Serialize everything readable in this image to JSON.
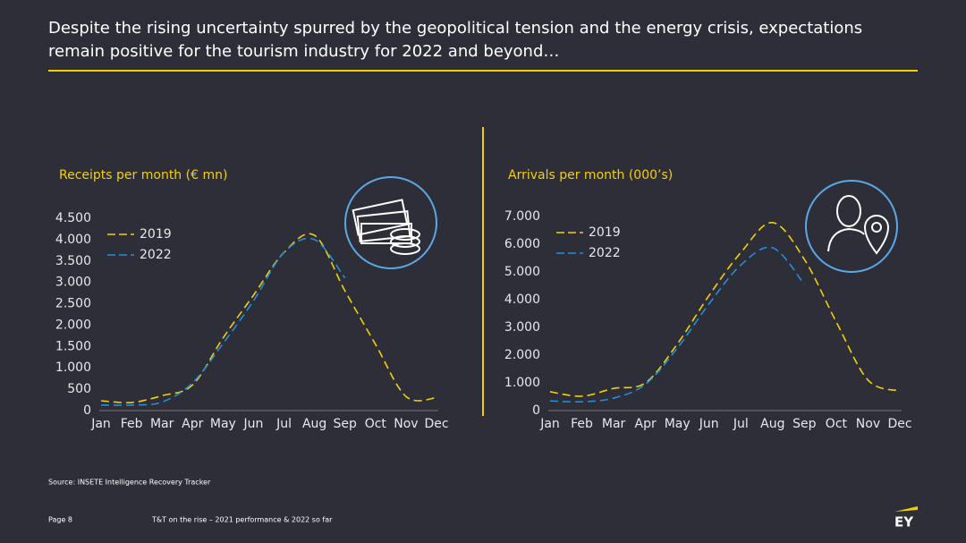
{
  "headline": [
    "Despite the rising uncertainty spurred by the geopolitical tension and the energy crisis, expectations",
    "remain positive for the tourism industry for 2022 and beyond…"
  ],
  "chart_data": [
    {
      "type": "line",
      "title": "Receipts per month (€ mn)",
      "categories": [
        "Jan",
        "Feb",
        "Mar",
        "Apr",
        "May",
        "Jun",
        "Jul",
        "Aug",
        "Sep",
        "Oct",
        "Nov",
        "Dec"
      ],
      "series": [
        {
          "name": "2019",
          "color": "#f5d000",
          "values": [
            230,
            190,
            350,
            600,
            1700,
            2700,
            3700,
            4100,
            2800,
            1550,
            330,
            300
          ]
        },
        {
          "name": "2022",
          "color": "#1f8fe0",
          "values": [
            130,
            130,
            200,
            650,
            1570,
            2570,
            3700,
            4000,
            3100,
            null,
            null,
            null
          ]
        }
      ],
      "ylim": [
        0,
        4500
      ],
      "yticks": [
        0,
        500,
        {
          "value": 1000,
          "label": "1.000"
        },
        {
          "value": 1500,
          "label": "1.500"
        },
        {
          "value": 2000,
          "label": "2.000"
        },
        {
          "value": 2500,
          "label": "2.500"
        },
        {
          "value": 3000,
          "label": "3.000"
        },
        {
          "value": 3500,
          "label": "3.500"
        },
        {
          "value": 4000,
          "label": "4.000"
        },
        {
          "value": 4500,
          "label": "4.500"
        }
      ],
      "legend": "upper left",
      "dashed": true
    },
    {
      "type": "line",
      "title": "Arrivals per month (000’s)",
      "categories": [
        "Jan",
        "Feb",
        "Mar",
        "Apr",
        "May",
        "Jun",
        "Jul",
        "Aug",
        "Sep",
        "Oct",
        "Nov",
        "Dec"
      ],
      "series": [
        {
          "name": "2019",
          "color": "#f5d000",
          "values": [
            680,
            520,
            800,
            1000,
            2400,
            4150,
            5700,
            6780,
            5450,
            3200,
            1100,
            710
          ]
        },
        {
          "name": "2022",
          "color": "#1f8fe0",
          "values": [
            350,
            320,
            450,
            950,
            2250,
            3850,
            5250,
            5870,
            4550,
            null,
            null,
            null
          ]
        }
      ],
      "ylim": [
        0,
        7000
      ],
      "yticks": [
        0,
        {
          "value": 1000,
          "label": "1.000"
        },
        {
          "value": 2000,
          "label": "2.000"
        },
        {
          "value": 3000,
          "label": "3.000"
        },
        {
          "value": 4000,
          "label": "4.000"
        },
        {
          "value": 5000,
          "label": "5.000"
        },
        {
          "value": 6000,
          "label": "6.000"
        },
        {
          "value": 7000,
          "label": "7.000"
        }
      ],
      "legend": "upper left",
      "dashed": true
    }
  ],
  "source": "Source: INSETE Intelligence Recovery Tracker",
  "page": "Page 8",
  "footer": "T&T on the rise – 2021 performance & 2022 so far",
  "logo": "EY"
}
